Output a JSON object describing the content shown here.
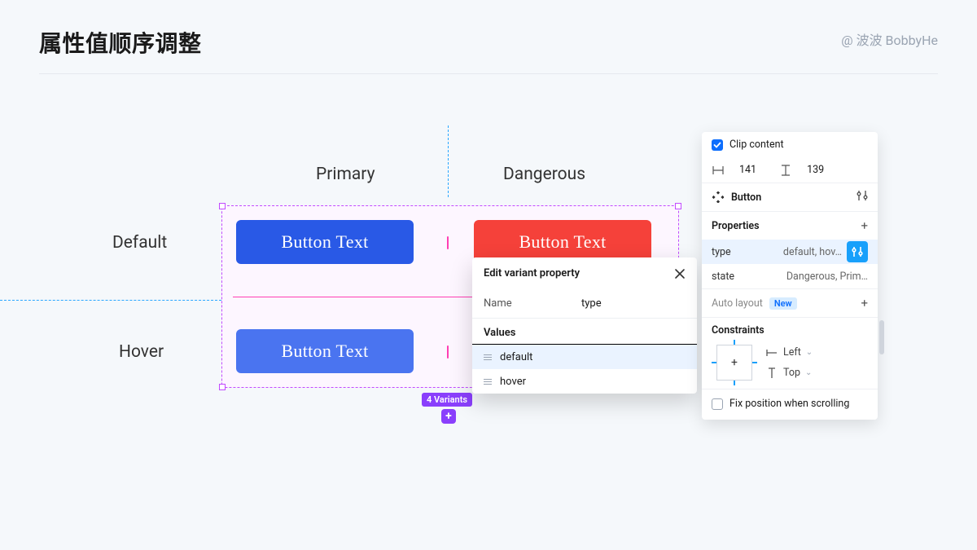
{
  "header": {
    "title": "属性值顺序调整",
    "author": "@ 波波 BobbyHe"
  },
  "colors": {
    "primary": "#2959e6",
    "primary_hover": "#4a74f0",
    "danger": "#f5413a",
    "selection": "#c24bff",
    "guide": "#2aa7ff",
    "accent": "#18a0fb",
    "badge_purple": "#8a3ffc"
  },
  "matrix": {
    "cols": [
      "Primary",
      "Dangerous"
    ],
    "rows": [
      "Default",
      "Hover"
    ],
    "button_text": "Button Text",
    "variant_badge": "4 Variants"
  },
  "popover": {
    "title": "Edit variant property",
    "name_label": "Name",
    "name_value": "type",
    "values_label": "Values",
    "values": [
      "default",
      "hover"
    ],
    "selected_index": 0
  },
  "panel": {
    "clip_label": "Clip content",
    "dim_w": "141",
    "dim_h": "139",
    "component_name": "Button",
    "properties_label": "Properties",
    "props": [
      {
        "name": "type",
        "value": "default, hov…",
        "active": true
      },
      {
        "name": "state",
        "value": "Dangerous, Prim…",
        "active": false
      }
    ],
    "auto_layout_label": "Auto layout",
    "auto_layout_badge": "New",
    "constraints_label": "Constraints",
    "constraint_h": "Left",
    "constraint_v": "Top",
    "fix_position_label": "Fix position when scrolling"
  }
}
